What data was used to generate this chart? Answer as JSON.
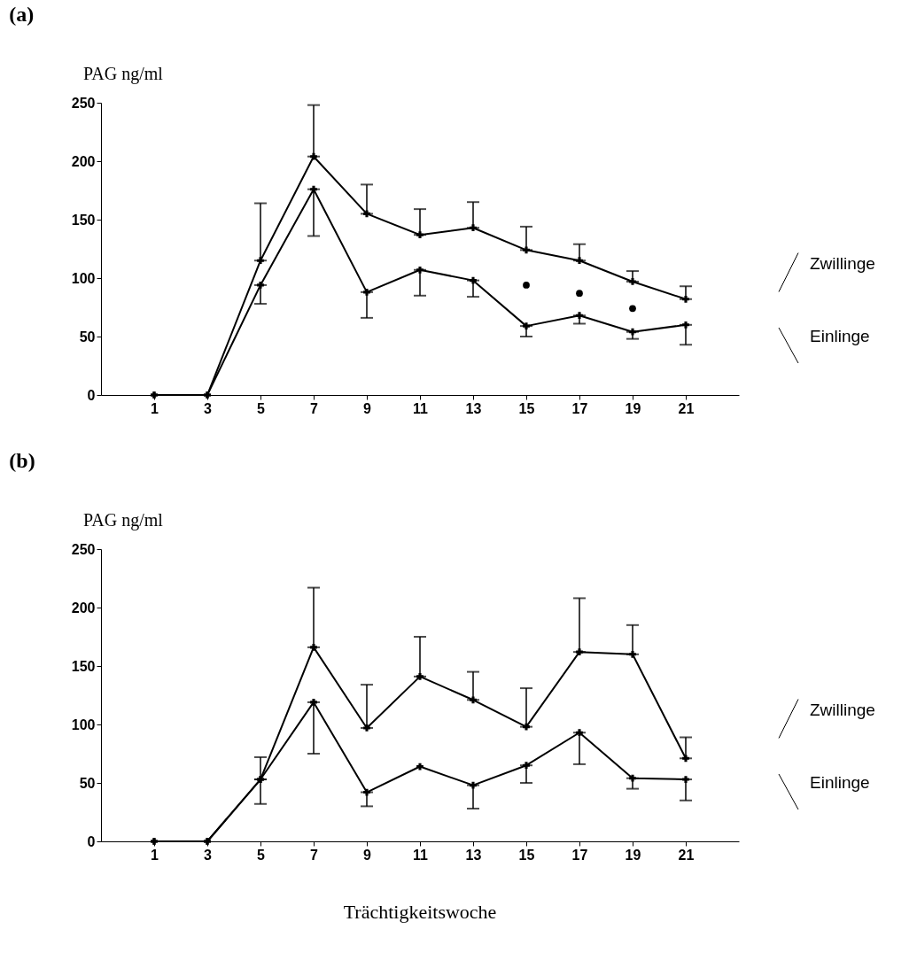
{
  "chart_data": [
    {
      "type": "line",
      "title": "(a)",
      "ylabel": "PAG ng/ml",
      "x": [
        1,
        3,
        5,
        7,
        9,
        11,
        13,
        15,
        17,
        19,
        21
      ],
      "xlim": [
        -1,
        23
      ],
      "xticks": [
        1,
        3,
        5,
        7,
        9,
        11,
        13,
        15,
        17,
        19,
        21
      ],
      "ylim": [
        0,
        250
      ],
      "yticks": [
        0,
        50,
        100,
        150,
        200,
        250
      ],
      "grid": false,
      "legend": "right",
      "marker": "cross",
      "line_style": "solid",
      "series": [
        {
          "name": "Zwillinge",
          "color": "#000000",
          "values": [
            0,
            0,
            115,
            204,
            155,
            137,
            143,
            124,
            115,
            97,
            82
          ],
          "errors": [
            null,
            null,
            [
              115,
              164
            ],
            [
              204,
              248
            ],
            [
              155,
              180
            ],
            [
              137,
              159
            ],
            [
              143,
              165
            ],
            [
              124,
              144
            ],
            [
              115,
              129
            ],
            [
              97,
              106
            ],
            [
              82,
              93
            ]
          ]
        },
        {
          "name": "Einlinge",
          "color": "#000000",
          "values": [
            0,
            0,
            94,
            176,
            88,
            107,
            98,
            59,
            68,
            54,
            60
          ],
          "errors": [
            null,
            null,
            [
              78,
              94
            ],
            [
              136,
              176
            ],
            [
              66,
              88
            ],
            [
              85,
              107
            ],
            [
              84,
              98
            ],
            [
              50,
              59
            ],
            [
              61,
              68
            ],
            [
              48,
              54
            ],
            [
              43,
              60
            ]
          ]
        },
        {
          "type": "scatter",
          "marker": "circle",
          "color": "#000000",
          "x": [
            15,
            17,
            19
          ],
          "values": [
            94,
            87,
            74
          ]
        }
      ]
    },
    {
      "type": "line",
      "title": "(b)",
      "ylabel": "PAG ng/ml",
      "xlabel": "Trächtigkeitswoche",
      "x": [
        1,
        3,
        5,
        7,
        9,
        11,
        13,
        15,
        17,
        19,
        21
      ],
      "xlim": [
        -1,
        23
      ],
      "xticks": [
        1,
        3,
        5,
        7,
        9,
        11,
        13,
        15,
        17,
        19,
        21
      ],
      "ylim": [
        0,
        250
      ],
      "yticks": [
        0,
        50,
        100,
        150,
        200,
        250
      ],
      "grid": false,
      "legend": "right",
      "marker": "cross",
      "line_style": "solid",
      "series": [
        {
          "name": "Zwillinge",
          "color": "#000000",
          "values": [
            0,
            0,
            53,
            166,
            97,
            141,
            121,
            98,
            162,
            160,
            71
          ],
          "errors": [
            null,
            null,
            [
              53,
              72
            ],
            [
              166,
              217
            ],
            [
              97,
              134
            ],
            [
              141,
              175
            ],
            [
              121,
              145
            ],
            [
              98,
              131
            ],
            [
              162,
              208
            ],
            [
              160,
              185
            ],
            [
              71,
              89
            ]
          ]
        },
        {
          "name": "Einlinge",
          "color": "#000000",
          "values": [
            0,
            0,
            53,
            119,
            42,
            64,
            48,
            65,
            93,
            54,
            53
          ],
          "errors": [
            null,
            null,
            [
              32,
              53
            ],
            [
              75,
              119
            ],
            [
              30,
              42
            ],
            null,
            [
              28,
              48
            ],
            [
              50,
              65
            ],
            [
              66,
              93
            ],
            [
              45,
              54
            ],
            [
              35,
              53
            ]
          ]
        }
      ]
    }
  ]
}
